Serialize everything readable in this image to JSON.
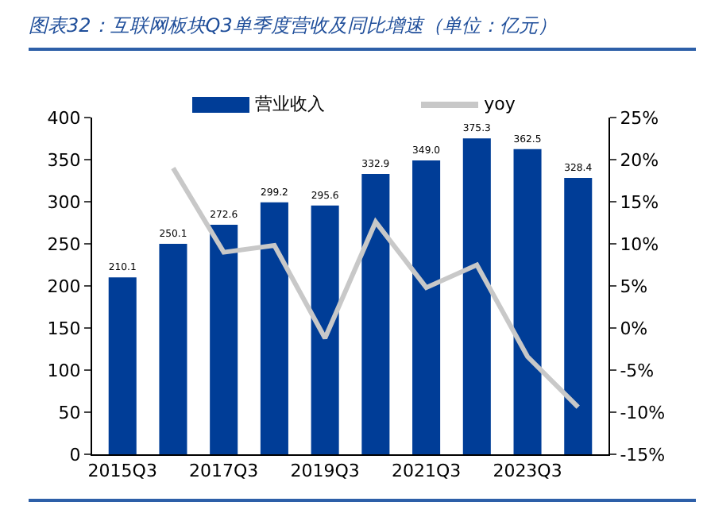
{
  "chart_data": {
    "type": "bar",
    "title": "图表32：互联网板块Q3单季度营收及同比增速（单位：亿元）",
    "categories": [
      "2015Q3",
      null,
      "2017Q3",
      null,
      "2019Q3",
      null,
      "2021Q3",
      null,
      "2023Q3",
      null
    ],
    "series": [
      {
        "name": "营业收入",
        "color": "#003d97",
        "values": [
          210.1,
          250.1,
          272.6,
          299.2,
          295.6,
          332.9,
          349.0,
          375.3,
          362.5,
          328.4
        ],
        "value_labels": [
          "210.1",
          "250.1",
          "272.6",
          "299.2",
          "295.6",
          "332.9",
          "349.0",
          "375.3",
          "362.5",
          "328.4"
        ]
      },
      {
        "name": "yoy",
        "type": "line",
        "axis": "y2",
        "color": "#c8c8c8",
        "values": [
          null,
          19.0,
          9.0,
          9.8,
          -1.2,
          12.6,
          4.8,
          7.5,
          -3.4,
          -9.4
        ]
      }
    ],
    "ylim": [
      0,
      400
    ],
    "yticks": [
      0,
      50,
      100,
      150,
      200,
      250,
      300,
      350,
      400
    ],
    "y2lim": [
      -15,
      25
    ],
    "y2ticks": [
      {
        "value": -15,
        "label": "-15%"
      },
      {
        "value": -10,
        "label": "-10%"
      },
      {
        "value": -5,
        "label": "-5%"
      },
      {
        "value": 0,
        "label": "0%"
      },
      {
        "value": 5,
        "label": "5%"
      },
      {
        "value": 10,
        "label": "10%"
      },
      {
        "value": 15,
        "label": "15%"
      },
      {
        "value": 20,
        "label": "20%"
      },
      {
        "value": 25,
        "label": "25%"
      }
    ],
    "grid": false,
    "legend": "top",
    "marker": "none",
    "line_style": "solid"
  }
}
